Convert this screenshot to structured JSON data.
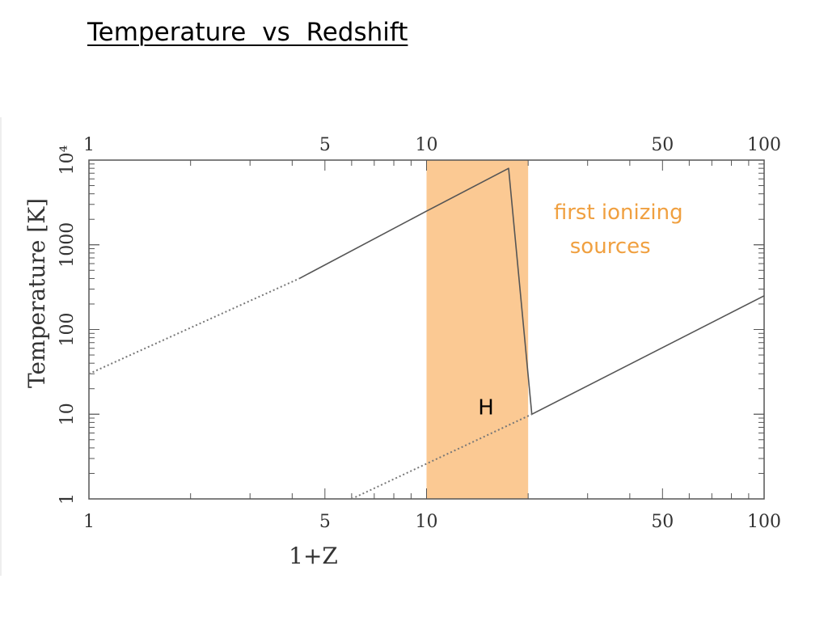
{
  "slide": {
    "title": "Temperature  vs  Redshift"
  },
  "chart_data": {
    "type": "line",
    "title": "",
    "xlabel": "1+Z",
    "ylabel": "Temperature [K]",
    "xscale": "log",
    "yscale": "log",
    "xlim": [
      1,
      100
    ],
    "ylim": [
      1,
      10000
    ],
    "x_ticks": [
      {
        "value": 1,
        "label": "1"
      },
      {
        "value": 5,
        "label": "5"
      },
      {
        "value": 10,
        "label": "10"
      },
      {
        "value": 50,
        "label": "50"
      },
      {
        "value": 100,
        "label": "100"
      }
    ],
    "y_ticks": [
      {
        "value": 1,
        "label": "1"
      },
      {
        "value": 10,
        "label": "10"
      },
      {
        "value": 100,
        "label": "100"
      },
      {
        "value": 1000,
        "label": "1000"
      },
      {
        "value": 10000,
        "label": "10⁴"
      }
    ],
    "grid": false,
    "shaded_regions": [
      {
        "x_range": [
          10,
          20
        ],
        "color": "#fbc993"
      }
    ],
    "series": [
      {
        "style": "dotted",
        "color": "#777777",
        "points": [
          [
            1,
            30
          ],
          [
            4.2,
            400
          ]
        ]
      },
      {
        "style": "solid",
        "color": "#555555",
        "points": [
          [
            4.2,
            400
          ],
          [
            10,
            2500
          ],
          [
            17.5,
            8000
          ],
          [
            20.5,
            10
          ]
        ]
      },
      {
        "style": "dotted",
        "color": "#777777",
        "points": [
          [
            6,
            1
          ],
          [
            20.5,
            10
          ]
        ]
      },
      {
        "style": "solid",
        "color": "#555555",
        "points": [
          [
            20.5,
            10
          ],
          [
            100,
            250
          ]
        ]
      }
    ],
    "annotations": [
      {
        "id": "sources",
        "lines": [
          "first ionizing",
          "sources"
        ],
        "x": 37,
        "y": 2000,
        "color": "#f0a040"
      },
      {
        "id": "h",
        "lines": [
          "H"
        ],
        "x": 15,
        "y": 10,
        "color": "#000000"
      }
    ]
  }
}
